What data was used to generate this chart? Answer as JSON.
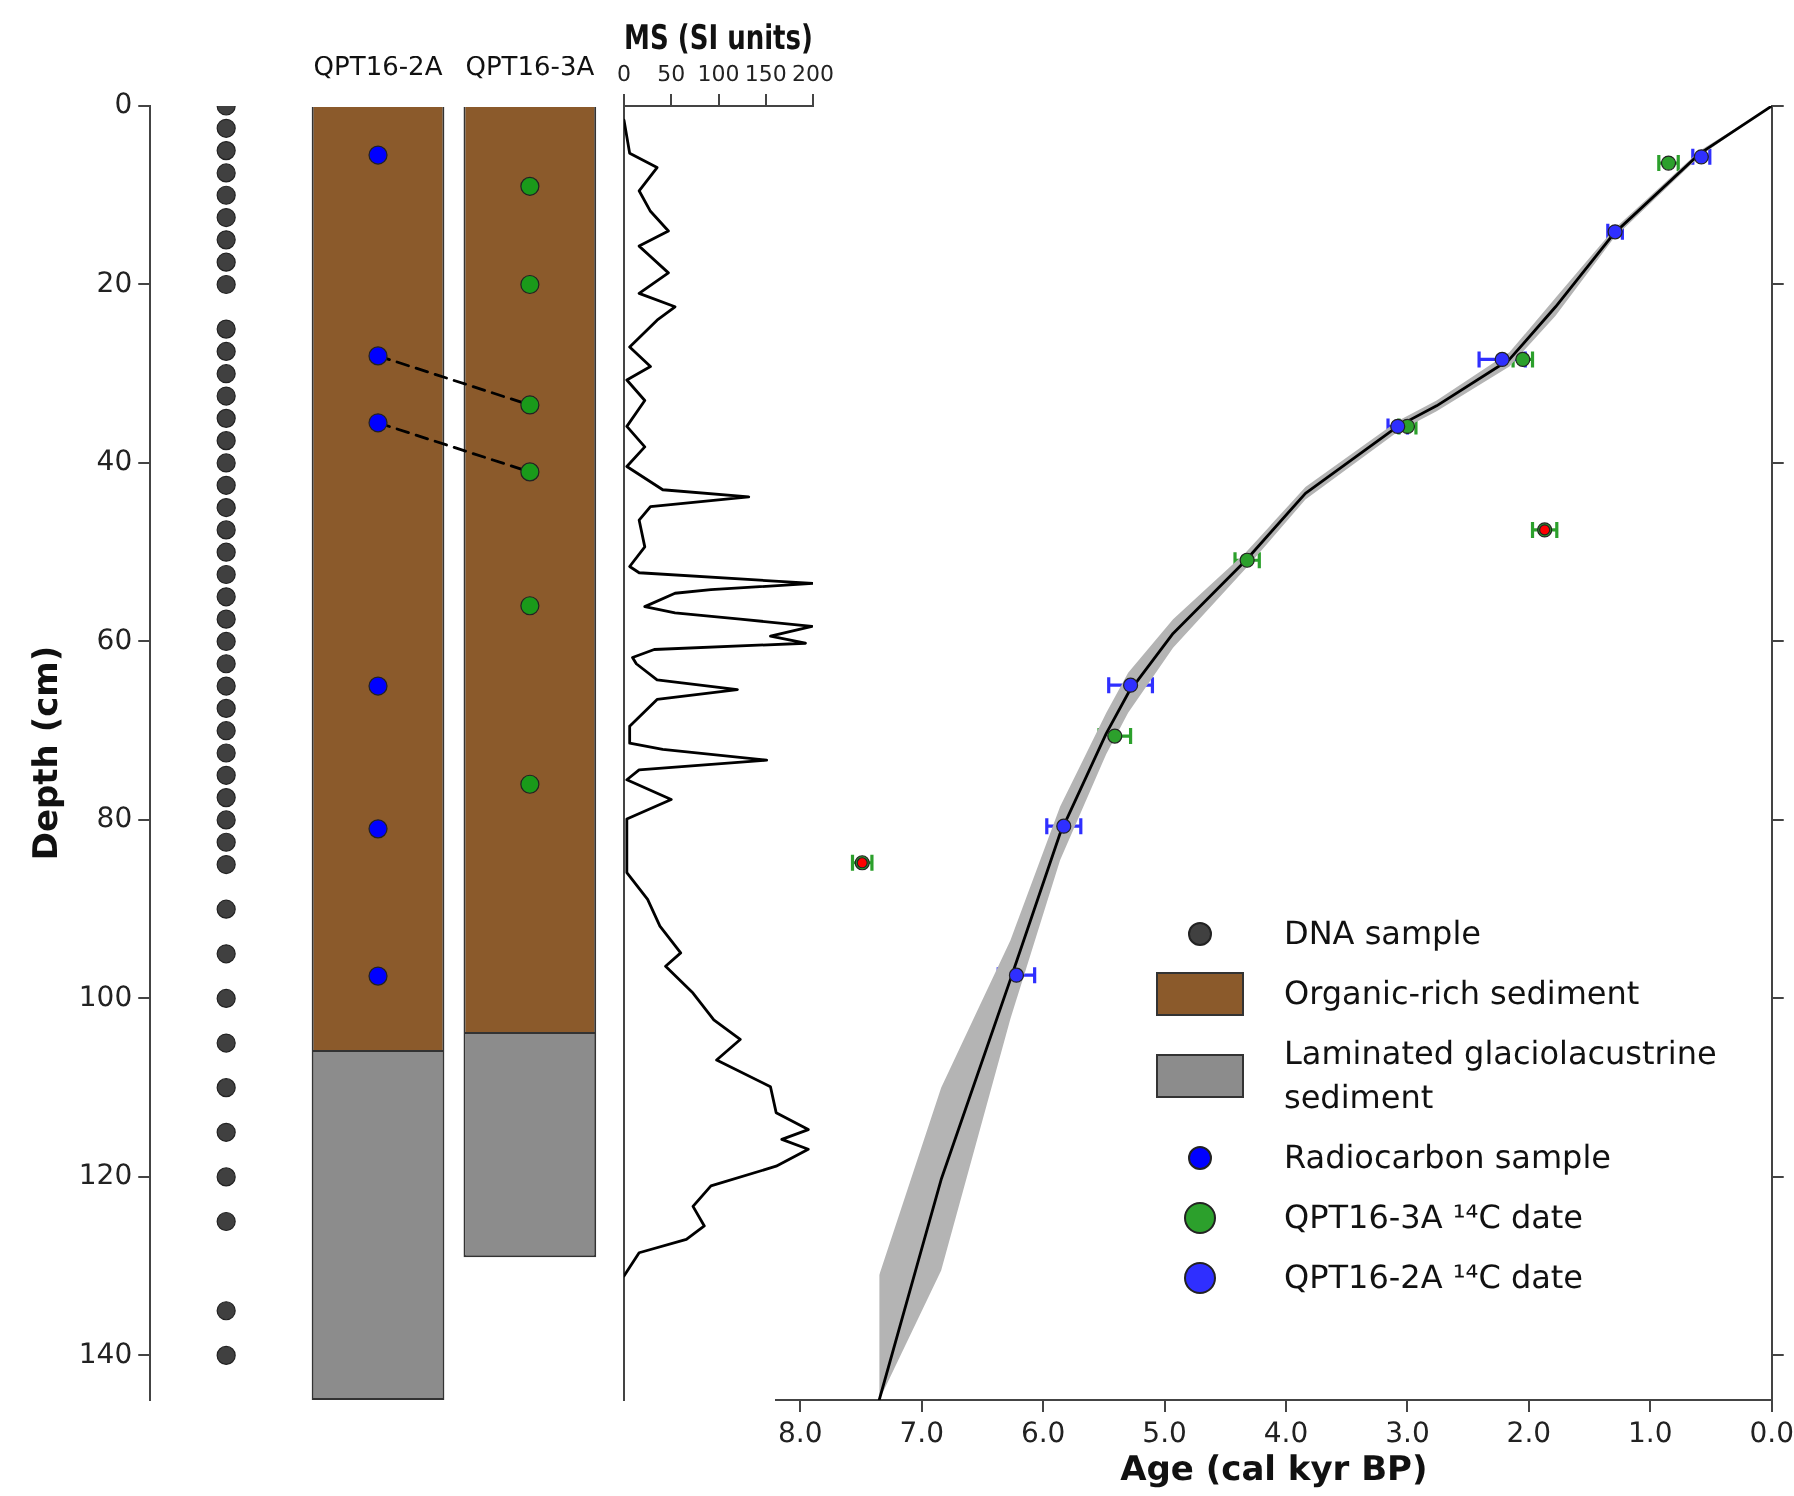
{
  "chart_data": [
    {
      "type": "bar",
      "categories": [
        null,
        "QPT16-2A",
        "QPT16-3A"
      ],
      "stacked": true,
      "ylabel": "Depth (cm)",
      "ylim": [
        145,
        0
      ],
      "yticks": [
        0,
        20,
        40,
        60,
        80,
        100,
        120,
        140
      ],
      "legend": "right",
      "series": [
        {
          "type": "scatter",
          "name": "DNA sample",
          "color": "#404040",
          "x": [
            null,
            null,
            null,
            null,
            null,
            null,
            null,
            null,
            null,
            null,
            null,
            null,
            null,
            null,
            null,
            null,
            null,
            null,
            null,
            null,
            null,
            null,
            null,
            null,
            null,
            null,
            null,
            null,
            null,
            null,
            null,
            null,
            null,
            null,
            null,
            null,
            null,
            null,
            null,
            null,
            null,
            null,
            null,
            null
          ],
          "values": [
            0,
            2.5,
            5,
            7.5,
            10,
            12.5,
            15,
            17.5,
            20,
            25,
            27.5,
            30,
            32.5,
            35,
            37.5,
            40,
            42.5,
            45,
            47.5,
            50,
            52.5,
            55,
            57.5,
            60,
            62.5,
            65,
            67.5,
            70,
            72.5,
            75,
            77.5,
            80,
            82.5,
            85,
            90,
            95,
            100,
            105,
            110,
            115,
            120,
            125,
            135,
            140
          ]
        },
        {
          "name": "Organic-rich sediment",
          "color": "#8b5a2b",
          "values": [
            null,
            106,
            104
          ]
        },
        {
          "name": "Laminated glaciolacustrine sediment",
          "color": "#8c8c8c",
          "values": [
            null,
            39,
            25
          ]
        },
        {
          "type": "scatter",
          "name": "Radiocarbon sample",
          "color": "#0000ff",
          "x": [
            "QPT16-2A",
            "QPT16-2A",
            "QPT16-2A",
            "QPT16-2A",
            "QPT16-2A",
            "QPT16-2A"
          ],
          "values": [
            5.5,
            28,
            35.5,
            65,
            81,
            97.5
          ]
        },
        {
          "type": "scatter",
          "color": "#1a9a1a",
          "x": [
            "QPT16-3A",
            "QPT16-3A",
            "QPT16-3A",
            "QPT16-3A",
            "QPT16-3A",
            "QPT16-3A"
          ],
          "values": [
            9,
            20,
            33.5,
            41,
            56,
            76
          ]
        },
        {
          "type": "line",
          "color": "#000000",
          "line_style": "dashed",
          "x": [
            "QPT16-2A",
            "QPT16-3A"
          ],
          "values": [
            28,
            33.5
          ]
        },
        {
          "type": "line",
          "color": "#000000",
          "line_style": "dashed",
          "x": [
            "QPT16-2A",
            "QPT16-3A"
          ],
          "values": [
            35.5,
            41
          ]
        }
      ]
    },
    {
      "type": "line",
      "xlabel": "MS (SI units)",
      "xlim": [
        0,
        200
      ],
      "xticks": [
        0,
        50,
        100,
        150,
        200
      ],
      "ylim": [
        145,
        0
      ],
      "tick_labels": "x",
      "series": [
        {
          "color": "#000000",
          "x": [
            0,
            6,
            35,
            16,
            28,
            47,
            16,
            47,
            16,
            54,
            35,
            6,
            28,
            3,
            22,
            3,
            22,
            3,
            41,
            132,
            28,
            16,
            22,
            6,
            16,
            200,
            92,
            54,
            22,
            54,
            123,
            199,
            155,
            192,
            32,
            9,
            13,
            35,
            120,
            35,
            6,
            6,
            41,
            151,
            16,
            3,
            50,
            3,
            3,
            25,
            38,
            60,
            44,
            73,
            95,
            114,
            123,
            98,
            155,
            161,
            195,
            167,
            195,
            161,
            92,
            73,
            85,
            66,
            16,
            0
          ],
          "values": [
            1.6,
            5.3,
            6.9,
            9.5,
            11.8,
            14,
            15.7,
            18.7,
            21,
            22.5,
            24,
            27,
            29.2,
            30.7,
            33,
            35.9,
            38.2,
            40.4,
            43,
            43.8,
            44.9,
            46.4,
            49.4,
            51.6,
            52.3,
            53.5,
            54.2,
            54.6,
            56.1,
            56.8,
            57.5,
            58.3,
            59.4,
            60.2,
            60.9,
            61.8,
            62.5,
            64.3,
            65.4,
            66.5,
            69.5,
            71.4,
            72.1,
            73.3,
            74.4,
            75.5,
            77.7,
            79.9,
            85.9,
            88.9,
            91.9,
            94.9,
            96.4,
            99.4,
            102.4,
            103.9,
            104.6,
            106.9,
            109.9,
            112.8,
            114.7,
            115.8,
            116.9,
            118.8,
            121,
            123.3,
            125.5,
            127,
            128.5,
            131.1
          ]
        }
      ]
    },
    {
      "type": "scatter",
      "xlabel": "Age (cal kyr BP)",
      "xlim": [
        8.2,
        0
      ],
      "xticks": [
        {
          "value": 8,
          "label": "8.0"
        },
        {
          "value": 7,
          "label": "7.0"
        },
        {
          "value": 6,
          "label": "6.0"
        },
        {
          "value": 5,
          "label": "5.0"
        },
        {
          "value": 4,
          "label": "4.0"
        },
        {
          "value": 3,
          "label": "3.0"
        },
        {
          "value": 2,
          "label": "2.0"
        },
        {
          "value": 1,
          "label": "1.0"
        },
        {
          "value": 0,
          "label": "0.0"
        }
      ],
      "ylim": [
        145,
        0
      ],
      "yticks": [
        0,
        20,
        40,
        60,
        80,
        100,
        120,
        140
      ],
      "tick_labels": "x",
      "legend": "bottom right",
      "series": [
        {
          "type": "line",
          "color": "#000000",
          "x": [
            0,
            0.59,
            1.3,
            1.78,
            2.16,
            2.76,
            3.08,
            3.84,
            4.33,
            4.93,
            5.3,
            5.48,
            5.86,
            6.27,
            6.84,
            7.35
          ],
          "values": [
            0,
            5.3,
            14.3,
            22.5,
            28.4,
            33.6,
            35.9,
            43.4,
            50.9,
            59.1,
            65.8,
            70.3,
            81.5,
            97.9,
            120.3,
            145
          ],
          "lower": [
            0,
            5,
            13.8,
            21.5,
            27.6,
            33,
            35.3,
            42.7,
            50,
            57.5,
            63.5,
            68,
            78.5,
            93.5,
            110,
            131
          ],
          "upper": [
            0,
            5.6,
            14.8,
            23.5,
            29.2,
            34.2,
            36.5,
            44.1,
            51.8,
            60.7,
            68,
            72.6,
            84.5,
            102.3,
            130.5,
            145
          ]
        },
        {
          "name": "QPT16-3A ¹⁴C date",
          "color": "#2ca02c",
          "x": [
            0.85,
            2.05,
            3.0,
            4.32,
            5.41,
            1.87,
            7.49
          ],
          "values": [
            6.4,
            28.4,
            35.9,
            50.9,
            70.6,
            47.5,
            84.8
          ],
          "xerrors": [
            0.08,
            0.08,
            0.07,
            0.1,
            0.13,
            0.1,
            0.08
          ]
        },
        {
          "name": "QPT16-2A ¹⁴C date",
          "color": "#2f2fff",
          "x": [
            0.58,
            1.29,
            2.22,
            3.08,
            5.28,
            5.83,
            6.22
          ],
          "values": [
            5.7,
            14.1,
            28.4,
            35.9,
            64.9,
            80.7,
            97.4
          ],
          "xerrors": [
            0.07,
            0.06,
            0.19,
            0.08,
            0.18,
            0.14,
            0.15
          ]
        },
        {
          "color": "#ff0000",
          "x": [
            1.87,
            7.49
          ],
          "values": [
            47.5,
            84.8
          ]
        }
      ]
    }
  ]
}
